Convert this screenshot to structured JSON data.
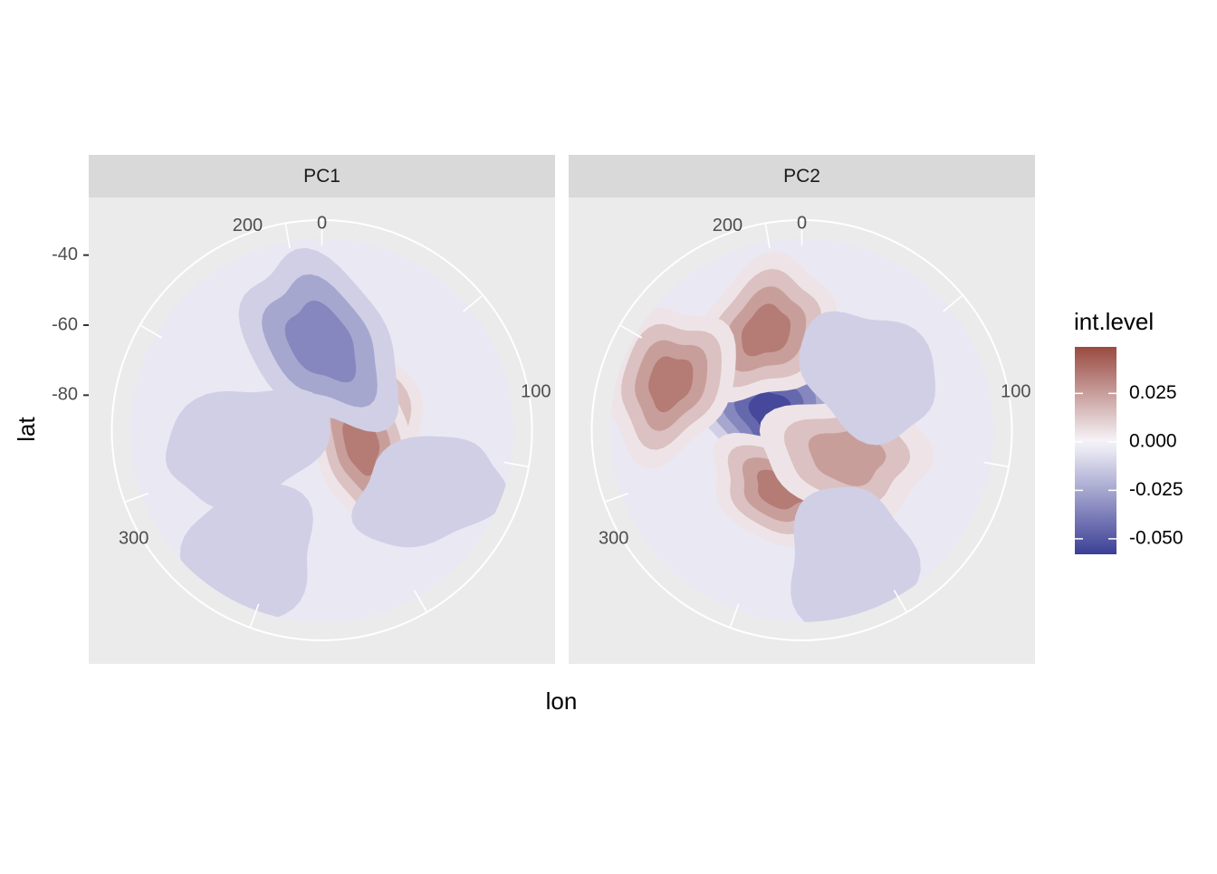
{
  "chart_data": {
    "type": "heatmap",
    "subtype": "filled-contour, polar (south-polar stereographic)",
    "xlabel": "lon",
    "ylabel": "lat",
    "lon_ticks": [
      0,
      100,
      200,
      300
    ],
    "lat_ticks": [
      -40,
      -60,
      -80
    ],
    "lat_range": [
      -90,
      -30
    ],
    "facets": [
      "PC1",
      "PC2"
    ],
    "legend": {
      "title": "int.level",
      "position": "right",
      "ticks": [
        0.025,
        0.0,
        -0.025,
        -0.05
      ],
      "tick_labels": [
        "0.025",
        "0.000",
        "-0.025",
        "-0.050"
      ],
      "range": [
        -0.058,
        0.049
      ],
      "colors": {
        "low": "#3b3f96",
        "mid": "#f7f5fa",
        "high": "#9a4a40"
      }
    },
    "contour_levels": [
      {
        "level": -0.055,
        "color": "#3e3f98"
      },
      {
        "level": -0.045,
        "color": "#5855a8"
      },
      {
        "level": -0.035,
        "color": "#7a74b8"
      },
      {
        "level": -0.025,
        "color": "#a69cd0"
      },
      {
        "level": -0.012,
        "color": "#cdc5e6"
      },
      {
        "level": 0.0,
        "color": "#ece9f4"
      },
      {
        "level": 0.005,
        "color": "#f3e8e6"
      },
      {
        "level": 0.015,
        "color": "#e3c5be"
      },
      {
        "level": 0.025,
        "color": "#d09c94"
      },
      {
        "level": 0.035,
        "color": "#bd766d"
      },
      {
        "level": 0.045,
        "color": "#a4554c"
      }
    ],
    "panels": [
      {
        "name": "PC1",
        "features": [
          {
            "lon": 120,
            "lat": -79,
            "value": 0.045,
            "extent": "peak"
          },
          {
            "lon": 70,
            "lat": -78,
            "value": 0.035
          },
          {
            "lon": 180,
            "lat": -65,
            "value": -0.035,
            "extent": "trough"
          },
          {
            "lon": 60,
            "lat": -55,
            "value": -0.012
          },
          {
            "lon": 330,
            "lat": -50,
            "value": -0.012
          },
          {
            "lon": 280,
            "lat": -68,
            "value": -0.012
          }
        ]
      },
      {
        "name": "PC2",
        "features": [
          {
            "lon": 240,
            "lat": -80,
            "value": -0.055,
            "extent": "trough"
          },
          {
            "lon": 200,
            "lat": -60,
            "value": 0.035
          },
          {
            "lon": 250,
            "lat": -50,
            "value": 0.035
          },
          {
            "lon": 340,
            "lat": -72,
            "value": 0.035
          },
          {
            "lon": 60,
            "lat": -75,
            "value": 0.025
          },
          {
            "lon": 130,
            "lat": -65,
            "value": -0.012
          },
          {
            "lon": 20,
            "lat": -50,
            "value": -0.012
          }
        ]
      }
    ]
  }
}
